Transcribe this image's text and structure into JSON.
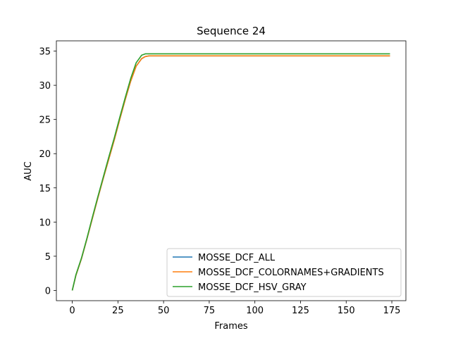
{
  "chart_data": {
    "type": "line",
    "title": "Sequence 24",
    "xlabel": "Frames",
    "ylabel": "AUC",
    "xlim": [
      -8.7,
      182.7
    ],
    "ylim": [
      -1.5,
      36.5
    ],
    "xticks": [
      0,
      25,
      50,
      75,
      100,
      125,
      150,
      175
    ],
    "yticks": [
      0,
      5,
      10,
      15,
      20,
      25,
      30,
      35
    ],
    "grid": false,
    "legend_position": "lower-right",
    "series": [
      {
        "name": "MOSSE_DCF_ALL",
        "color": "#1f77b4",
        "x": [
          0,
          2,
          5,
          8,
          11,
          14,
          17,
          20,
          23,
          26,
          29,
          32,
          35,
          38,
          40,
          42,
          50,
          75,
          100,
          125,
          150,
          174
        ],
        "y": [
          0,
          2.2,
          4.6,
          7.5,
          10.5,
          13.5,
          16.4,
          19.2,
          22.0,
          25.0,
          27.9,
          30.6,
          32.8,
          33.9,
          34.2,
          34.3,
          34.3,
          34.3,
          34.3,
          34.3,
          34.3,
          34.3
        ]
      },
      {
        "name": "MOSSE_DCF_COLORNAMES+GRADIENTS",
        "color": "#ff7f0e",
        "x": [
          0,
          2,
          5,
          8,
          11,
          14,
          17,
          20,
          23,
          26,
          29,
          32,
          35,
          38,
          40,
          42,
          50,
          75,
          100,
          125,
          150,
          174
        ],
        "y": [
          0,
          2.2,
          4.6,
          7.5,
          10.5,
          13.5,
          16.4,
          19.2,
          22.0,
          25.0,
          27.9,
          30.6,
          32.8,
          33.9,
          34.2,
          34.3,
          34.3,
          34.3,
          34.3,
          34.3,
          34.3,
          34.3
        ]
      },
      {
        "name": "MOSSE_DCF_HSV_GRAY",
        "color": "#2ca02c",
        "x": [
          0,
          2,
          5,
          8,
          11,
          14,
          17,
          20,
          23,
          26,
          29,
          32,
          35,
          38,
          40,
          42,
          50,
          75,
          100,
          125,
          150,
          174
        ],
        "y": [
          0,
          2.3,
          4.7,
          7.6,
          10.7,
          13.7,
          16.6,
          19.5,
          22.3,
          25.3,
          28.2,
          31.0,
          33.3,
          34.4,
          34.6,
          34.6,
          34.6,
          34.6,
          34.6,
          34.6,
          34.6,
          34.6
        ]
      }
    ]
  }
}
